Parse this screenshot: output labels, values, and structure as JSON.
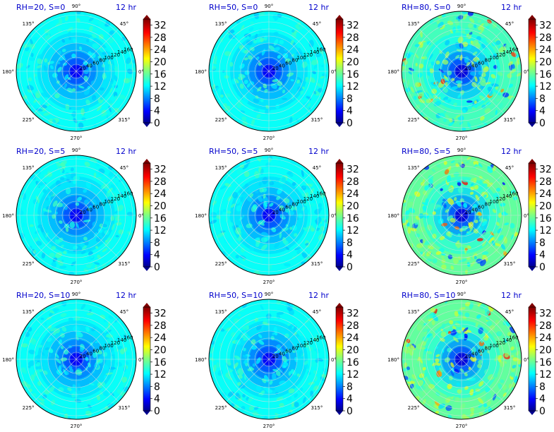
{
  "chart_data": {
    "type": "polar_heatmap",
    "layout": "3x3 grid",
    "colormap": "jet",
    "angular_tick_labels": [
      "0°",
      "45°",
      "90°",
      "135°",
      "180°",
      "225°",
      "270°",
      "315°"
    ],
    "radial_tick_labels": [
      "20",
      "40",
      "60",
      "80",
      "100",
      "120",
      "140",
      "160"
    ],
    "rlim": [
      0,
      170
    ],
    "colorbar": {
      "range": [
        0,
        34
      ],
      "ticks": [
        "0",
        "4",
        "8",
        "12",
        "16",
        "20",
        "24",
        "28",
        "32"
      ],
      "tick_values": [
        0,
        4,
        8,
        12,
        16,
        20,
        24,
        28,
        32
      ],
      "extend": "both"
    },
    "panels": [
      {
        "title": "RH=20, S=0",
        "time_label": "12 hr",
        "rh": 20,
        "s": 0,
        "typical_value": 13,
        "center_min": 4
      },
      {
        "title": "RH=50, S=0",
        "time_label": "12 hr",
        "rh": 50,
        "s": 0,
        "typical_value": 13,
        "center_min": 4
      },
      {
        "title": "RH=80, S=0",
        "time_label": "12 hr",
        "rh": 80,
        "s": 0,
        "typical_value": 15,
        "center_min": 3
      },
      {
        "title": "RH=20, S=5",
        "time_label": "12 hr",
        "rh": 20,
        "s": 5,
        "typical_value": 13,
        "center_min": 4
      },
      {
        "title": "RH=50, S=5",
        "time_label": "12 hr",
        "rh": 50,
        "s": 5,
        "typical_value": 13,
        "center_min": 4
      },
      {
        "title": "RH=80, S=5",
        "time_label": "12 hr",
        "rh": 80,
        "s": 5,
        "typical_value": 16,
        "center_min": 3
      },
      {
        "title": "RH=20, S=10",
        "time_label": "12 hr",
        "rh": 20,
        "s": 10,
        "typical_value": 13,
        "center_min": 4
      },
      {
        "title": "RH=50, S=10",
        "time_label": "12 hr",
        "rh": 50,
        "s": 10,
        "typical_value": 13,
        "center_min": 4
      },
      {
        "title": "RH=80, S=10",
        "time_label": "12 hr",
        "rh": 80,
        "s": 10,
        "typical_value": 16,
        "center_min": 3
      }
    ]
  }
}
